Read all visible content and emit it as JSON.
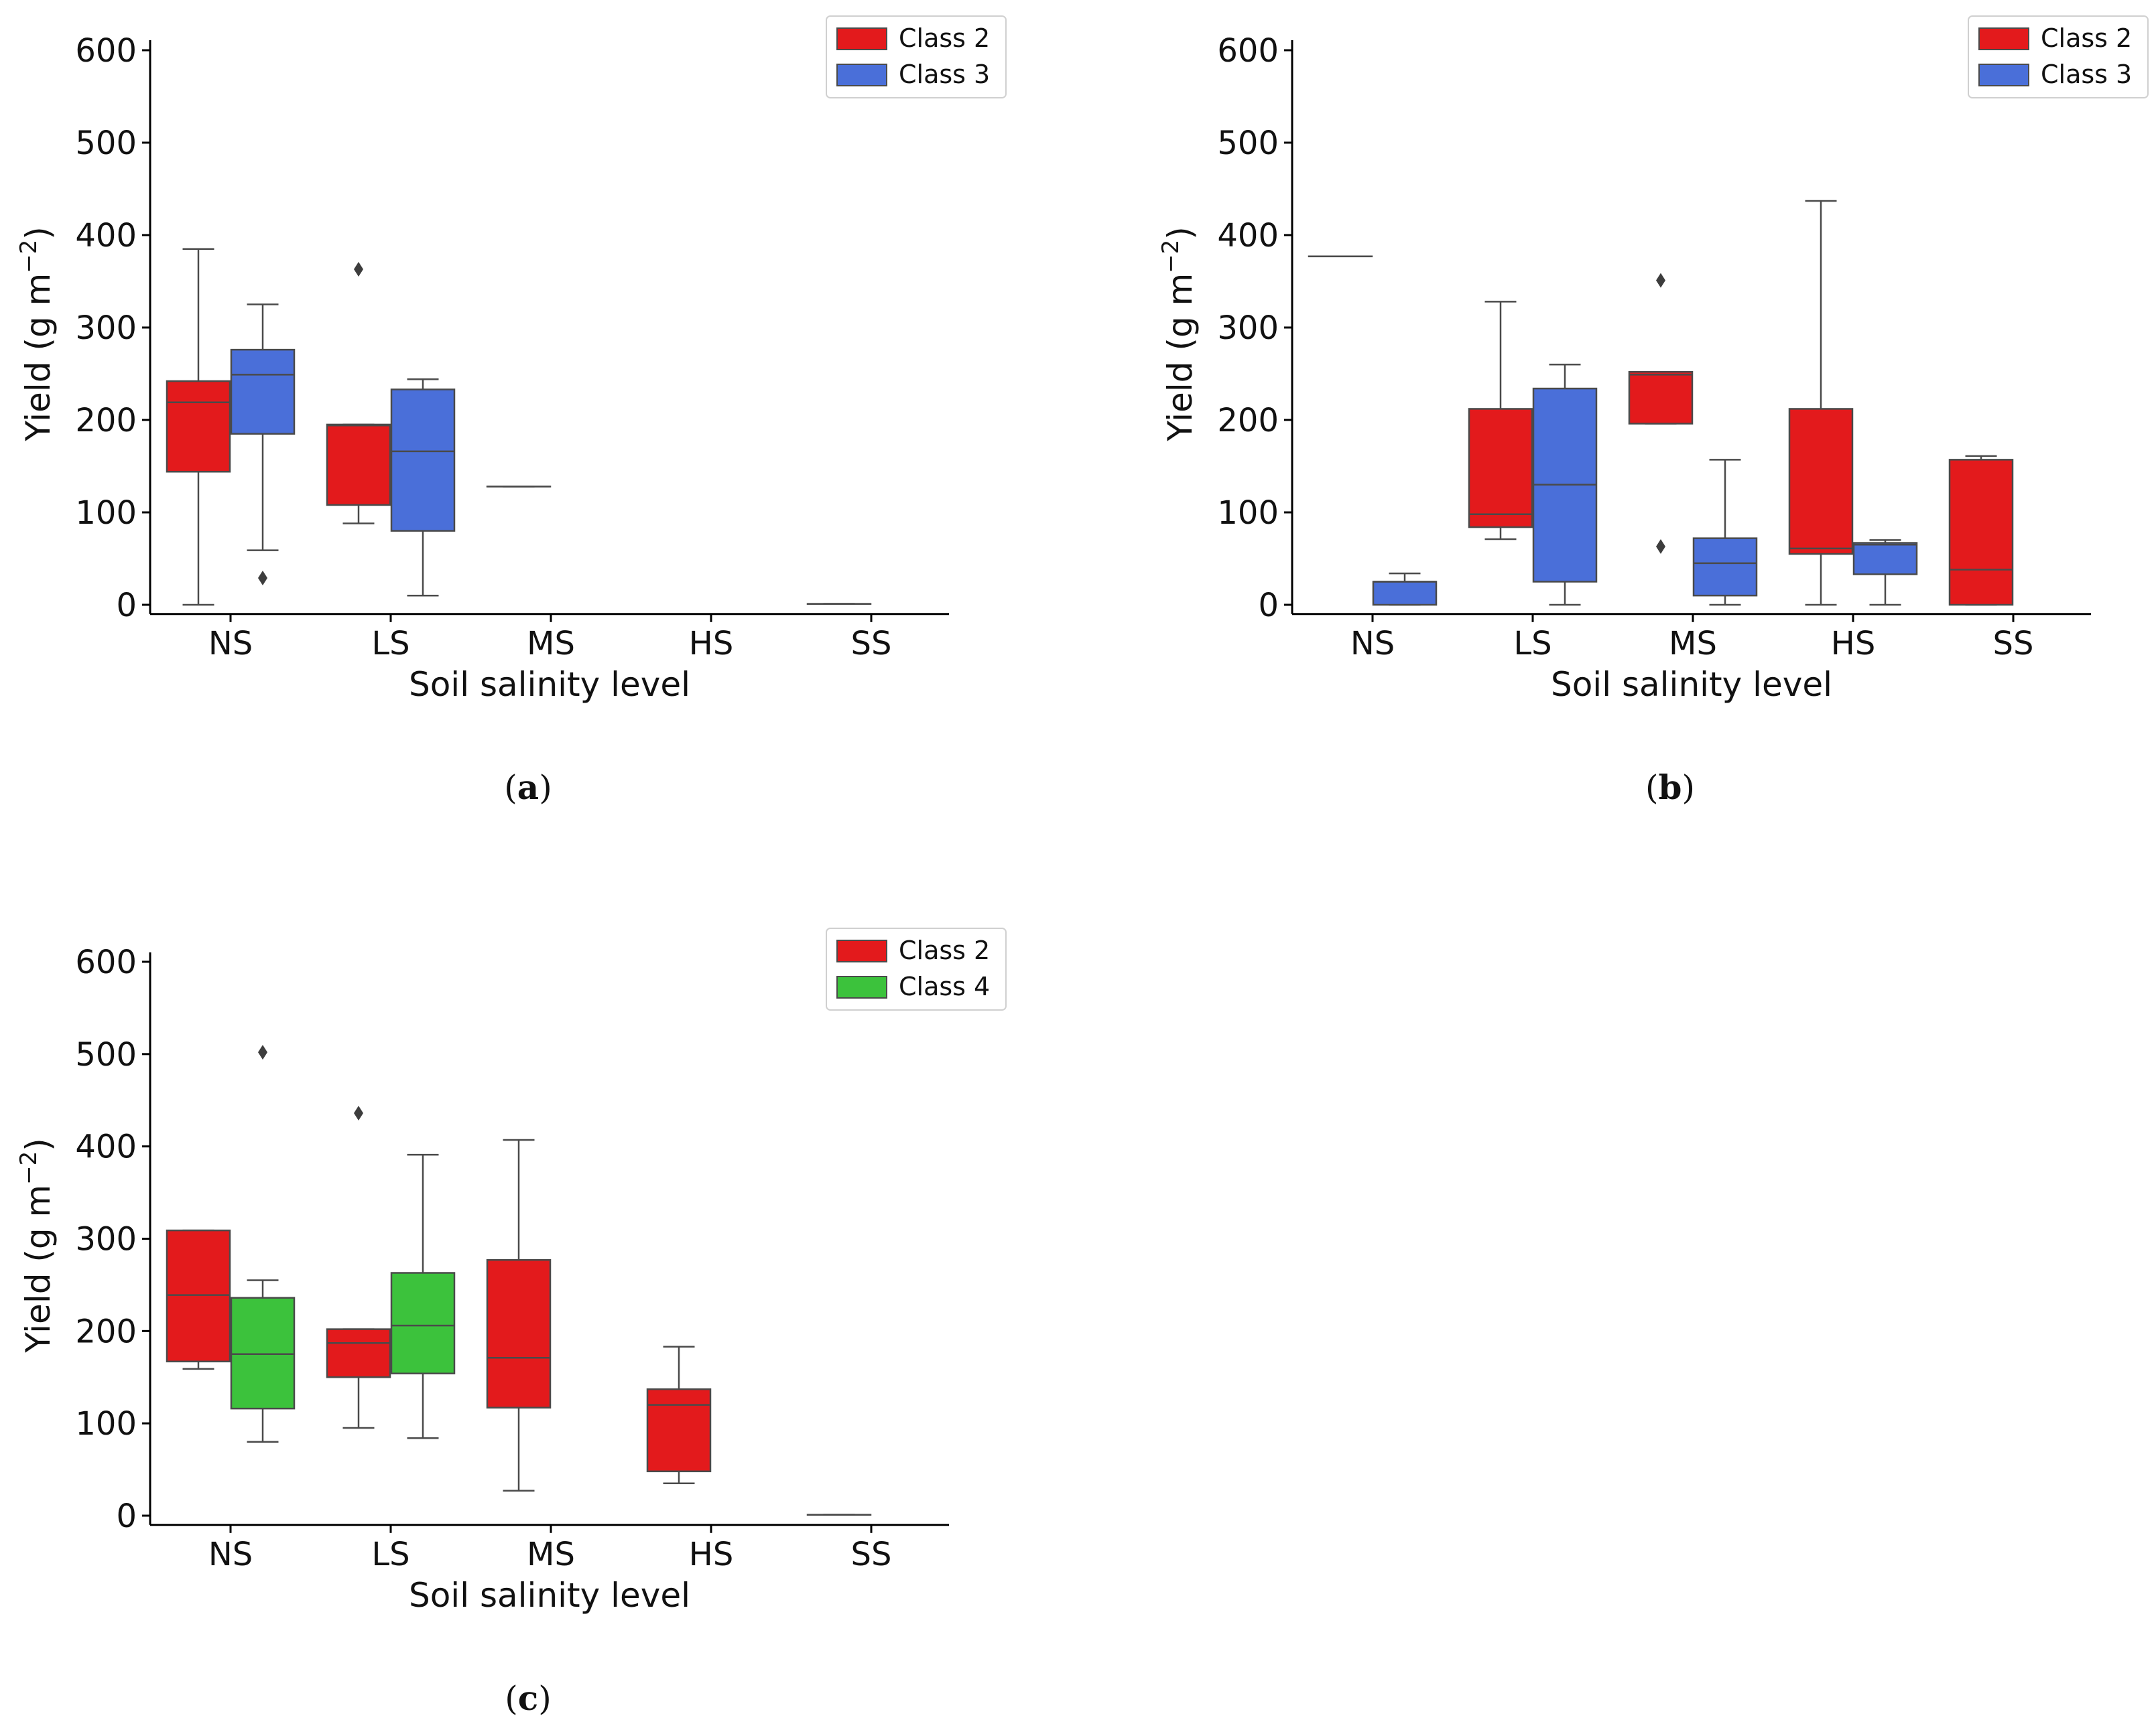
{
  "chart_data": [
    {
      "id": "a",
      "type": "box",
      "caption_letter": "a",
      "xlabel": "Soil salinity level",
      "ylabel": "Yield (g m",
      "ylabel_sup": "−2",
      "ylabel_close": ")",
      "categories": [
        "NS",
        "LS",
        "MS",
        "HS",
        "SS"
      ],
      "ylim": [
        -10,
        600
      ],
      "yticks": [
        0,
        100,
        200,
        300,
        400,
        500,
        600
      ],
      "legend": {
        "position": "top-right"
      },
      "series": [
        {
          "name": "Class 2",
          "color": "#e31a1c",
          "boxes": [
            {
              "category": "NS",
              "min": 0,
              "q1": 144,
              "median": 219,
              "q3": 242,
              "max": 385,
              "outliers": []
            },
            {
              "category": "LS",
              "min": 88,
              "q1": 108,
              "median": 194,
              "q3": 195,
              "max": 195,
              "outliers": [
                363
              ]
            },
            {
              "category": "MS",
              "min": 128,
              "q1": 128,
              "median": 128,
              "q3": 128,
              "max": 128,
              "outliers": []
            },
            null,
            {
              "category": "SS",
              "min": 1,
              "q1": 1,
              "median": 1,
              "q3": 1,
              "max": 1,
              "outliers": []
            }
          ]
        },
        {
          "name": "Class 3",
          "color": "#4a6fd9",
          "boxes": [
            {
              "category": "NS",
              "min": 59,
              "q1": 185,
              "median": 249,
              "q3": 276,
              "max": 325,
              "outliers": [
                29
              ]
            },
            {
              "category": "LS",
              "min": 10,
              "q1": 80,
              "median": 166,
              "q3": 233,
              "max": 244,
              "outliers": []
            },
            null,
            null,
            null
          ]
        }
      ]
    },
    {
      "id": "b",
      "type": "box",
      "caption_letter": "b",
      "xlabel": "Soil salinity level",
      "ylabel": "Yield (g m",
      "ylabel_sup": "−2",
      "ylabel_close": ")",
      "categories": [
        "NS",
        "LS",
        "MS",
        "HS",
        "SS"
      ],
      "ylim": [
        -10,
        600
      ],
      "yticks": [
        0,
        100,
        200,
        300,
        400,
        500,
        600
      ],
      "legend": {
        "position": "top-right"
      },
      "series": [
        {
          "name": "Class 2",
          "color": "#e31a1c",
          "boxes": [
            {
              "category": "NS",
              "min": 377,
              "q1": 377,
              "median": 377,
              "q3": 377,
              "max": 377,
              "outliers": []
            },
            {
              "category": "LS",
              "min": 71,
              "q1": 84,
              "median": 98,
              "q3": 212,
              "max": 328,
              "outliers": []
            },
            {
              "category": "MS",
              "min": 196,
              "q1": 196,
              "median": 249,
              "q3": 252,
              "max": 252,
              "outliers": [
                351,
                63
              ]
            },
            {
              "category": "HS",
              "min": 0,
              "q1": 55,
              "median": 61,
              "q3": 212,
              "max": 437,
              "outliers": []
            },
            {
              "category": "SS",
              "min": 0,
              "q1": 0,
              "median": 38,
              "q3": 157,
              "max": 161,
              "outliers": []
            }
          ]
        },
        {
          "name": "Class 3",
          "color": "#4a6fd9",
          "boxes": [
            {
              "category": "NS",
              "min": 0,
              "q1": 0,
              "median": 25,
              "q3": 25,
              "max": 34,
              "outliers": []
            },
            {
              "category": "LS",
              "min": 0,
              "q1": 25,
              "median": 130,
              "q3": 234,
              "max": 260,
              "outliers": []
            },
            {
              "category": "MS",
              "min": 0,
              "q1": 10,
              "median": 45,
              "q3": 72,
              "max": 157,
              "outliers": []
            },
            {
              "category": "HS",
              "min": 0,
              "q1": 33,
              "median": 65,
              "q3": 67,
              "max": 70,
              "outliers": []
            },
            null
          ]
        }
      ]
    },
    {
      "id": "c",
      "type": "box",
      "caption_letter": "c",
      "xlabel": "Soil salinity level",
      "ylabel": "Yield (g m",
      "ylabel_sup": "−2",
      "ylabel_close": ")",
      "categories": [
        "NS",
        "LS",
        "MS",
        "HS",
        "SS"
      ],
      "ylim": [
        -10,
        600
      ],
      "yticks": [
        0,
        100,
        200,
        300,
        400,
        500,
        600
      ],
      "legend": {
        "position": "top-right"
      },
      "series": [
        {
          "name": "Class 2",
          "color": "#e31a1c",
          "boxes": [
            {
              "category": "NS",
              "min": 159,
              "q1": 167,
              "median": 239,
              "q3": 309,
              "max": 309,
              "outliers": []
            },
            {
              "category": "LS",
              "min": 95,
              "q1": 150,
              "median": 187,
              "q3": 202,
              "max": 202,
              "outliers": [
                436
              ]
            },
            {
              "category": "MS",
              "min": 27,
              "q1": 117,
              "median": 171,
              "q3": 277,
              "max": 407,
              "outliers": []
            },
            {
              "category": "HS",
              "min": 35,
              "q1": 48,
              "median": 120,
              "q3": 137,
              "max": 183,
              "outliers": []
            },
            {
              "category": "SS",
              "min": 1,
              "q1": 1,
              "median": 1,
              "q3": 1,
              "max": 1,
              "outliers": []
            }
          ]
        },
        {
          "name": "Class 4",
          "color": "#3cc23c",
          "boxes": [
            {
              "category": "NS",
              "min": 80,
              "q1": 116,
              "median": 175,
              "q3": 236,
              "max": 255,
              "outliers": [
                502
              ]
            },
            {
              "category": "LS",
              "min": 84,
              "q1": 154,
              "median": 206,
              "q3": 263,
              "max": 391,
              "outliers": []
            },
            null,
            null,
            null
          ]
        }
      ]
    }
  ]
}
